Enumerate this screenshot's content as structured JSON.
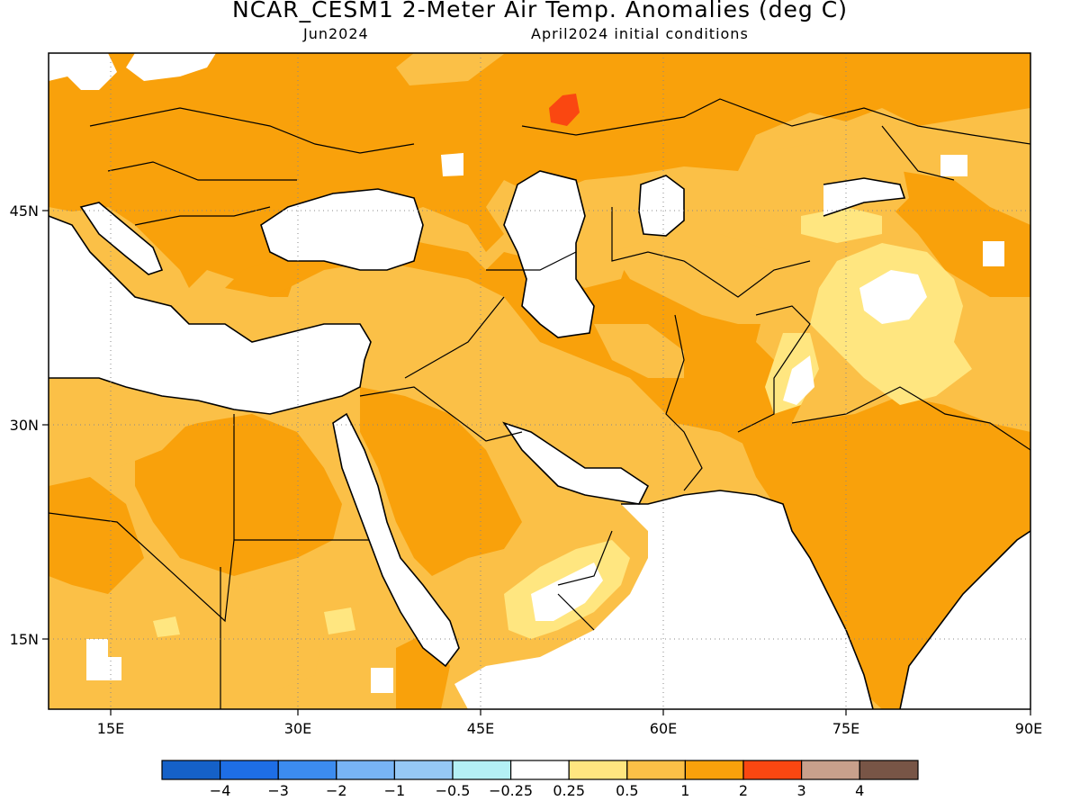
{
  "header": {
    "title": "NCAR_CESM1 2-Meter Air Temp. Anomalies (deg C)",
    "period": "Jun2024",
    "init": "April2024 initial conditions"
  },
  "map": {
    "x_ticks": [
      "15E",
      "30E",
      "45E",
      "60E",
      "75E",
      "90E"
    ],
    "y_ticks": [
      "45N",
      "30N",
      "15N"
    ],
    "colors": {
      "ocean": "#ffffff",
      "warm_0_25": "#ffe680",
      "warm_0_5": "#fbc047",
      "warm_1": "#f9a10b",
      "warm_2": "#fa4711",
      "coast": "#000000"
    }
  },
  "colorbar": {
    "labels": [
      "−4",
      "−3",
      "−2",
      "−1",
      "−0.5",
      "−0.25",
      "0.25",
      "0.5",
      "1",
      "2",
      "3",
      "4"
    ],
    "colors": [
      "#1561c8",
      "#1e6ee6",
      "#3c8cf0",
      "#78b4f5",
      "#96c8f5",
      "#b4f0f5",
      "#ffffff",
      "#ffe680",
      "#fbc047",
      "#f9a10b",
      "#fa4711",
      "#c8a08c",
      "#785546"
    ]
  }
}
